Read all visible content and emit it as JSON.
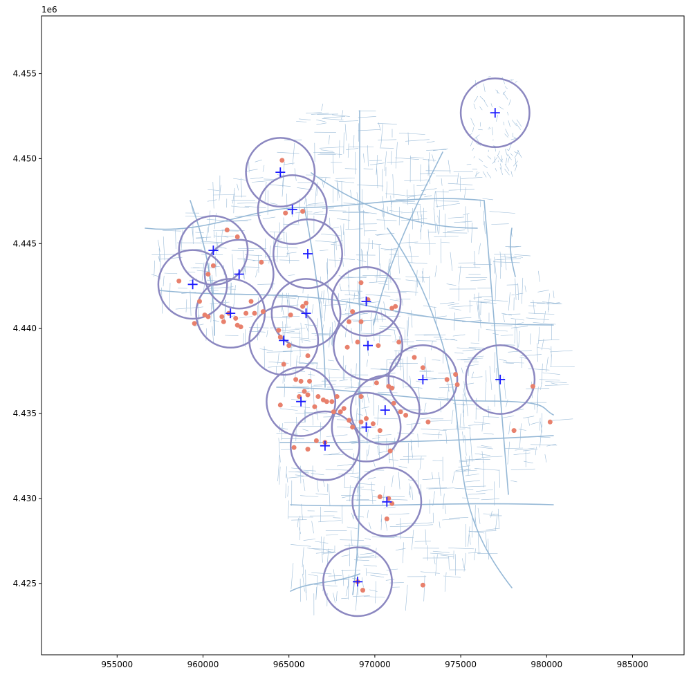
{
  "chart_data": {
    "type": "scatter",
    "offset_label": "1e6",
    "xlim": [
      950600,
      988000
    ],
    "ylim": [
      4420800,
      4458400
    ],
    "x_ticks": [
      955000,
      960000,
      965000,
      970000,
      975000,
      980000,
      985000
    ],
    "x_tick_labels": [
      "955000",
      "960000",
      "965000",
      "970000",
      "975000",
      "980000",
      "985000"
    ],
    "y_ticks": [
      4425000,
      4430000,
      4435000,
      4440000,
      4445000,
      4450000,
      4455000
    ],
    "y_tick_labels": [
      "4.425",
      "4.430",
      "4.435",
      "4.440",
      "4.445",
      "4.450",
      "4.455"
    ],
    "grid": false,
    "colors": {
      "roads": "#8fb4d4",
      "circles": "#8b87c0",
      "points": "#e8806c",
      "centers": "#1a1aff"
    },
    "circle_radius": 2000,
    "centers": [
      [
        977000,
        4452700
      ],
      [
        964500,
        4449200
      ],
      [
        965200,
        4447000
      ],
      [
        960600,
        4444600
      ],
      [
        966100,
        4444400
      ],
      [
        962100,
        4443200
      ],
      [
        959400,
        4442600
      ],
      [
        969500,
        4441600
      ],
      [
        961600,
        4440900
      ],
      [
        966000,
        4440900
      ],
      [
        964700,
        4439300
      ],
      [
        969600,
        4439000
      ],
      [
        972800,
        4437000
      ],
      [
        977300,
        4437000
      ],
      [
        965700,
        4435700
      ],
      [
        970600,
        4435200
      ],
      [
        969500,
        4434200
      ],
      [
        967100,
        4433100
      ],
      [
        970700,
        4429800
      ],
      [
        969000,
        4425100
      ]
    ],
    "points": [
      [
        964600,
        4449900
      ],
      [
        964800,
        4446800
      ],
      [
        965800,
        4446900
      ],
      [
        961400,
        4445800
      ],
      [
        962000,
        4445400
      ],
      [
        960600,
        4443700
      ],
      [
        960300,
        4443200
      ],
      [
        963400,
        4443900
      ],
      [
        958600,
        4442800
      ],
      [
        959800,
        4441600
      ],
      [
        962800,
        4441600
      ],
      [
        963500,
        4441000
      ],
      [
        960100,
        4440800
      ],
      [
        960300,
        4440700
      ],
      [
        961100,
        4440700
      ],
      [
        961200,
        4440400
      ],
      [
        961500,
        4440900
      ],
      [
        961900,
        4440600
      ],
      [
        962000,
        4440200
      ],
      [
        962200,
        4440100
      ],
      [
        962500,
        4440900
      ],
      [
        963000,
        4440900
      ],
      [
        959500,
        4440300
      ],
      [
        964500,
        4439500
      ],
      [
        965000,
        4439000
      ],
      [
        964400,
        4439900
      ],
      [
        965800,
        4441300
      ],
      [
        966000,
        4441500
      ],
      [
        965100,
        4440800
      ],
      [
        966100,
        4438400
      ],
      [
        964700,
        4437900
      ],
      [
        965400,
        4437000
      ],
      [
        965700,
        4436900
      ],
      [
        966200,
        4436900
      ],
      [
        965900,
        4436300
      ],
      [
        966100,
        4436100
      ],
      [
        965600,
        4436000
      ],
      [
        966700,
        4436000
      ],
      [
        967000,
        4435800
      ],
      [
        967200,
        4435700
      ],
      [
        967500,
        4435700
      ],
      [
        966500,
        4435400
      ],
      [
        964500,
        4435500
      ],
      [
        967600,
        4435100
      ],
      [
        968000,
        4435100
      ],
      [
        968200,
        4435300
      ],
      [
        968500,
        4434600
      ],
      [
        968700,
        4434200
      ],
      [
        969200,
        4434500
      ],
      [
        969500,
        4434700
      ],
      [
        969900,
        4434400
      ],
      [
        970300,
        4434000
      ],
      [
        971100,
        4435600
      ],
      [
        971500,
        4435100
      ],
      [
        971800,
        4434900
      ],
      [
        970800,
        4436600
      ],
      [
        971000,
        4436500
      ],
      [
        970100,
        4436800
      ],
      [
        969200,
        4436000
      ],
      [
        967800,
        4436000
      ],
      [
        968400,
        4438900
      ],
      [
        969000,
        4439200
      ],
      [
        970200,
        4439000
      ],
      [
        971400,
        4439200
      ],
      [
        969200,
        4440400
      ],
      [
        968700,
        4441000
      ],
      [
        968500,
        4440400
      ],
      [
        969200,
        4442700
      ],
      [
        969600,
        4441700
      ],
      [
        971000,
        4441200
      ],
      [
        971200,
        4441300
      ],
      [
        972300,
        4438300
      ],
      [
        972800,
        4437700
      ],
      [
        974200,
        4437000
      ],
      [
        974700,
        4437300
      ],
      [
        974800,
        4436700
      ],
      [
        973100,
        4434500
      ],
      [
        978100,
        4434000
      ],
      [
        980200,
        4434500
      ],
      [
        979200,
        4436600
      ],
      [
        966600,
        4433400
      ],
      [
        967100,
        4433300
      ],
      [
        966100,
        4432900
      ],
      [
        965300,
        4433000
      ],
      [
        970900,
        4432800
      ],
      [
        970300,
        4430100
      ],
      [
        970800,
        4430000
      ],
      [
        971000,
        4429700
      ],
      [
        970700,
        4428800
      ],
      [
        969300,
        4424600
      ],
      [
        972800,
        4424900
      ],
      [
        969000,
        4425100
      ]
    ]
  }
}
